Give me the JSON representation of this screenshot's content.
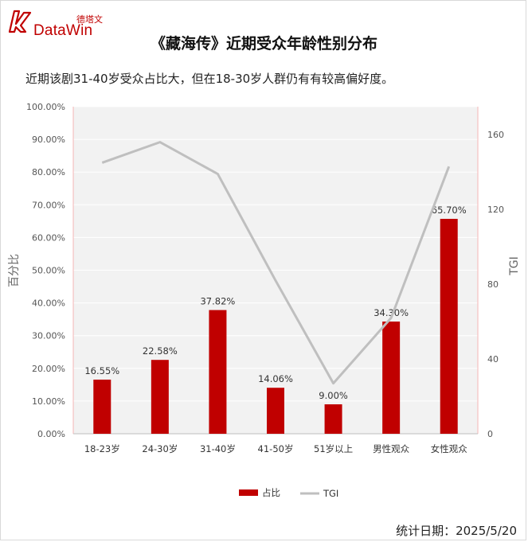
{
  "brand": {
    "logo_cn": "德塔文",
    "logo_en": "DataWin",
    "color": "#c00000"
  },
  "header": {
    "title": "《藏海传》近期受众年龄性别分布",
    "subtitle": "近期该剧31-40岁受众占比大，但在18-30岁人群仍有有较高偏好度。"
  },
  "footer": {
    "date_text": "统计日期：2025/5/20"
  },
  "chart_data": {
    "type": "bar",
    "categories": [
      "18-23岁",
      "24-30岁",
      "31-40岁",
      "41-50岁",
      "51岁以上",
      "男性观众",
      "女性观众"
    ],
    "series": [
      {
        "name": "占比",
        "type": "bar",
        "axis": "left",
        "color": "#c00000",
        "values": [
          16.55,
          22.58,
          37.82,
          14.06,
          9.0,
          34.3,
          65.7
        ],
        "labels": [
          "16.55%",
          "22.58%",
          "37.82%",
          "14.06%",
          "9.00%",
          "34.30%",
          "65.70%"
        ]
      },
      {
        "name": "TGI",
        "type": "line",
        "axis": "right",
        "color": "#bfbfbf",
        "values": [
          145,
          156,
          139,
          82,
          27,
          62,
          143
        ]
      }
    ],
    "ylabel": "百分比",
    "y2label": "TGI",
    "ylim": [
      0,
      100
    ],
    "y2lim": [
      0,
      175
    ],
    "y_ticks": [
      "0.00%",
      "10.00%",
      "20.00%",
      "30.00%",
      "40.00%",
      "50.00%",
      "60.00%",
      "70.00%",
      "80.00%",
      "90.00%",
      "100.00%"
    ],
    "y2_ticks": [
      "0",
      "40",
      "80",
      "120",
      "160"
    ],
    "grid": true,
    "legend_position": "bottom"
  }
}
